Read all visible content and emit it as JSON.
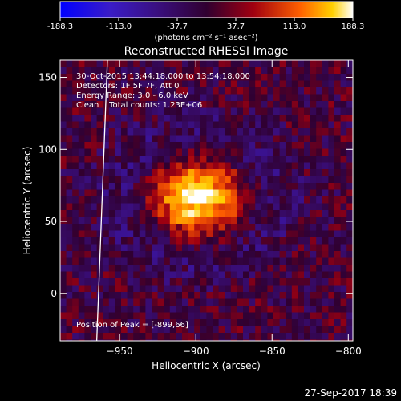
{
  "chart_data": {
    "type": "heatmap",
    "title": "Reconstructed RHESSI Image",
    "xlabel": "Heliocentric X (arcsec)",
    "ylabel": "Heliocentric Y (arcsec)",
    "xlim": [
      -989,
      -797
    ],
    "ylim": [
      -33,
      162
    ],
    "x_ticks": [
      -950,
      -900,
      -850,
      -800
    ],
    "y_ticks": [
      0,
      50,
      100,
      150
    ],
    "colorbar": {
      "ticks": [
        "-188.3",
        "-113.0",
        "-37.7",
        "37.7",
        "113.0",
        "188.3"
      ],
      "unit": "(photons cm⁻² s⁻¹ asec⁻²)",
      "range": [
        -188.3,
        188.3
      ]
    },
    "annotations": [
      "30-Oct-2015 13:44:18.000 to 13:54:18.000",
      "Detectors: 1F 5F 7F, Att 0",
      "Energy Range: 3.0 - 6.0 keV",
      "Clean    Total counts: 1.23E+06"
    ],
    "peak_label": "Position of Peak = [-899,66]",
    "peak": {
      "x": -899,
      "y": 66,
      "value": 188.3
    },
    "limb_line": {
      "x_at_ymin": -965,
      "x_at_ymax": -958
    },
    "timestamp": "27-Sep-2017 18:39"
  }
}
